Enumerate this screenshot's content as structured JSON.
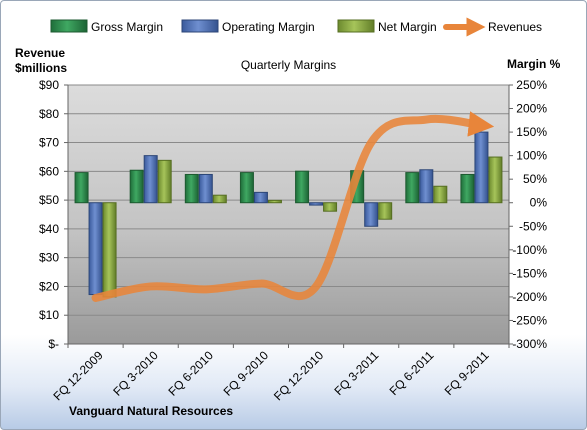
{
  "chart_data": {
    "type": "bar",
    "title": "Quarterly Margins",
    "ylabel_left": "Revenue\n$millions",
    "ylabel_right": "Margin %",
    "footer": "Vanguard Natural Resources",
    "categories": [
      "FQ 12-2009",
      "FQ 3-2010",
      "FQ 6-2010",
      "FQ 9-2010",
      "FQ 12-2010",
      "FQ 3-2011",
      "FQ 6-2011",
      "FQ 9-2011"
    ],
    "left_axis": {
      "ylim": [
        0,
        90
      ],
      "ticks": [
        "$-",
        "$10",
        "$20",
        "$30",
        "$40",
        "$50",
        "$60",
        "$70",
        "$80",
        "$90"
      ]
    },
    "right_axis": {
      "ylim": [
        -300,
        250
      ],
      "ticks": [
        "-300%",
        "-250%",
        "-200%",
        "-150%",
        "-100%",
        "-50%",
        "0%",
        "50%",
        "100%",
        "150%",
        "200%",
        "250%"
      ]
    },
    "series": [
      {
        "name": "Gross Margin",
        "axis": "right",
        "color": "#2b8a4c",
        "values": [
          64,
          69,
          60,
          64,
          67,
          68,
          64,
          60
        ]
      },
      {
        "name": "Operating Margin",
        "axis": "right",
        "color": "#4e6fb5",
        "values": [
          -195,
          100,
          60,
          22,
          -5,
          -50,
          70,
          150
        ]
      },
      {
        "name": "Net Margin",
        "axis": "right",
        "color": "#84a13f",
        "values": [
          -200,
          90,
          16,
          5,
          -18,
          -35,
          35,
          97
        ]
      },
      {
        "name": "Revenues",
        "axis": "left",
        "color": "#e8853a",
        "type": "line",
        "values": [
          16,
          20,
          19,
          21,
          20,
          70,
          78,
          76
        ]
      }
    ],
    "grid": true,
    "legend_position": "top"
  }
}
